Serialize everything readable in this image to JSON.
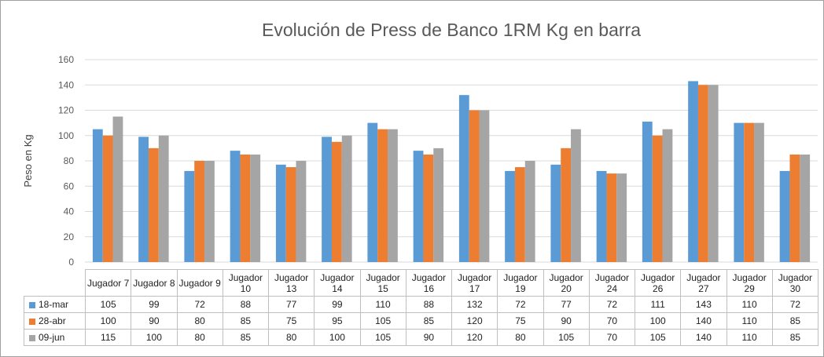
{
  "chart_data": {
    "type": "bar",
    "title": "Evolución de Press de Banco 1RM Kg en barra",
    "y_label": "Peso en Kg",
    "categories": [
      "Jugador 7",
      "Jugador 8",
      "Jugador 9",
      "Jugador 10",
      "Jugador 13",
      "Jugador 14",
      "Jugador 15",
      "Jugador 16",
      "Jugador 17",
      "Jugador 19",
      "Jugador 20",
      "Jugador 24",
      "Jugador 26",
      "Jugador 27",
      "Jugador 29",
      "Jugador 30"
    ],
    "series": [
      {
        "name": "18-mar",
        "color": "#5b9bd5",
        "values": [
          105,
          99,
          72,
          88,
          77,
          99,
          110,
          88,
          132,
          72,
          77,
          72,
          111,
          143,
          110,
          72
        ]
      },
      {
        "name": "28-abr",
        "color": "#ed7d31",
        "values": [
          100,
          90,
          80,
          85,
          75,
          95,
          105,
          85,
          120,
          75,
          90,
          70,
          100,
          140,
          110,
          85
        ]
      },
      {
        "name": "09-jun",
        "color": "#a5a5a5",
        "values": [
          115,
          100,
          80,
          85,
          80,
          100,
          105,
          90,
          120,
          80,
          105,
          70,
          105,
          140,
          110,
          85
        ]
      }
    ],
    "ylim": [
      0,
      160
    ],
    "yticks": [
      0,
      20,
      40,
      60,
      80,
      100,
      120,
      140,
      160
    ],
    "grid": true
  }
}
